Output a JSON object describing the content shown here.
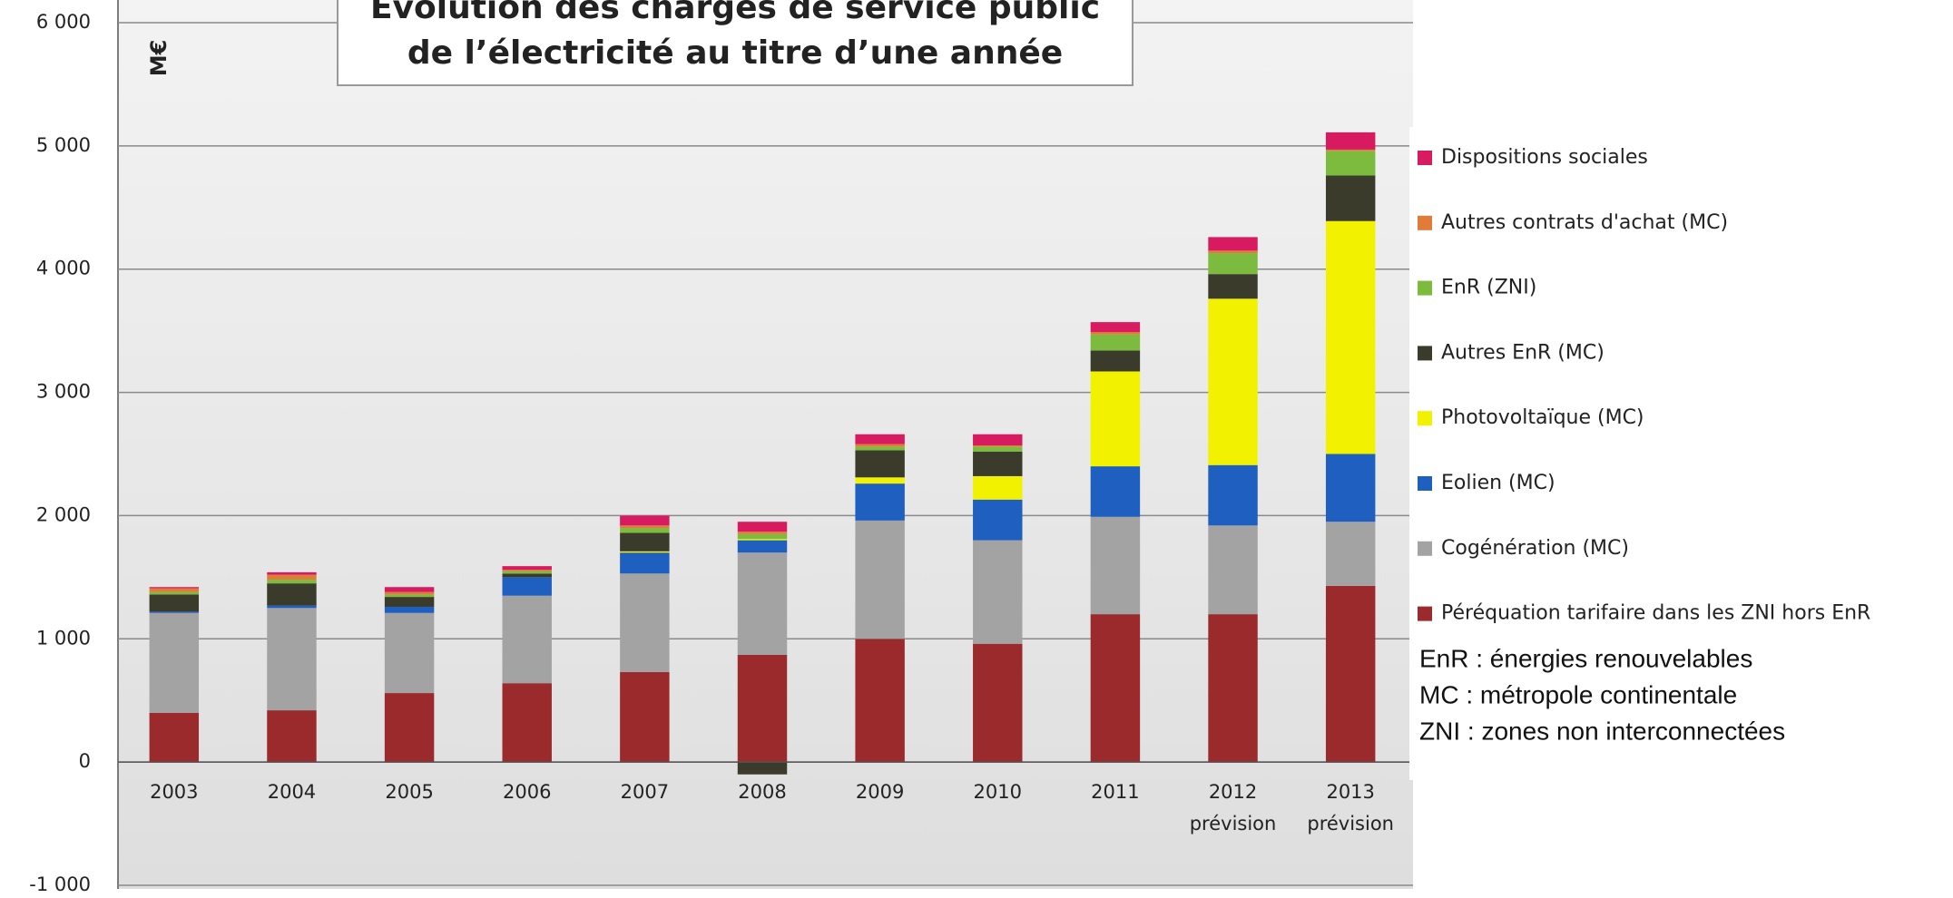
{
  "chart_data": {
    "type": "bar",
    "stacked": true,
    "title": [
      "Évolution des charges de service public",
      "de l’électricité au titre d’une année"
    ],
    "y_axis_label": "M€",
    "categories": [
      "2003",
      "2004",
      "2005",
      "2006",
      "2007",
      "2008",
      "2009",
      "2010",
      "2011",
      "2012",
      "2013"
    ],
    "category_sublabels": [
      "prévision",
      "prévision"
    ],
    "series": [
      {
        "name": "Péréquation tarifaire dans les ZNI hors EnR",
        "color": "#9b2a2c",
        "values": [
          400,
          420,
          560,
          640,
          730,
          870,
          1000,
          960,
          1200,
          1200,
          1430
        ]
      },
      {
        "name": "Cogénération (MC)",
        "color": "#a3a3a3",
        "values": [
          810,
          830,
          650,
          710,
          800,
          830,
          960,
          840,
          790,
          720,
          520
        ]
      },
      {
        "name": "Eolien (MC)",
        "color": "#1f5fc0",
        "values": [
          10,
          20,
          50,
          150,
          170,
          100,
          300,
          330,
          410,
          490,
          550
        ]
      },
      {
        "name": "Photovoltaïque (MC)",
        "color": "#f2f200",
        "values": [
          0,
          0,
          0,
          0,
          10,
          10,
          50,
          190,
          770,
          1350,
          1890
        ]
      },
      {
        "name": "Autres EnR (MC)",
        "color": "#3b3b2c",
        "values": [
          140,
          180,
          80,
          30,
          150,
          -100,
          220,
          200,
          170,
          200,
          370
        ]
      },
      {
        "name": "EnR (ZNI)",
        "color": "#7cbb3e",
        "values": [
          20,
          30,
          20,
          20,
          40,
          40,
          30,
          40,
          130,
          170,
          200
        ]
      },
      {
        "name": "Autres contrats d'achat (MC)",
        "color": "#e07b39",
        "values": [
          30,
          40,
          20,
          10,
          20,
          20,
          20,
          10,
          20,
          20,
          10
        ]
      },
      {
        "name": "Dispositions sociales",
        "color": "#d81b60",
        "values": [
          10,
          20,
          40,
          30,
          80,
          80,
          80,
          90,
          80,
          110,
          140
        ]
      }
    ],
    "ylim": [
      -1000,
      6000
    ],
    "yticks": [
      {
        "value": -1000,
        "label": "-1 000"
      },
      0,
      {
        "value": 1000,
        "label": "1 000"
      },
      {
        "value": 2000,
        "label": "2 000"
      },
      {
        "value": 3000,
        "label": "3 000"
      },
      {
        "value": 4000,
        "label": "4 000"
      },
      {
        "value": 5000,
        "label": "5 000"
      },
      {
        "value": 6000,
        "label": "6 000"
      }
    ],
    "grid": true,
    "legend": "right",
    "notes": [
      "EnR : énergies renouvelables",
      "MC : métropole continentale",
      "ZNI : zones non interconnectées"
    ]
  }
}
